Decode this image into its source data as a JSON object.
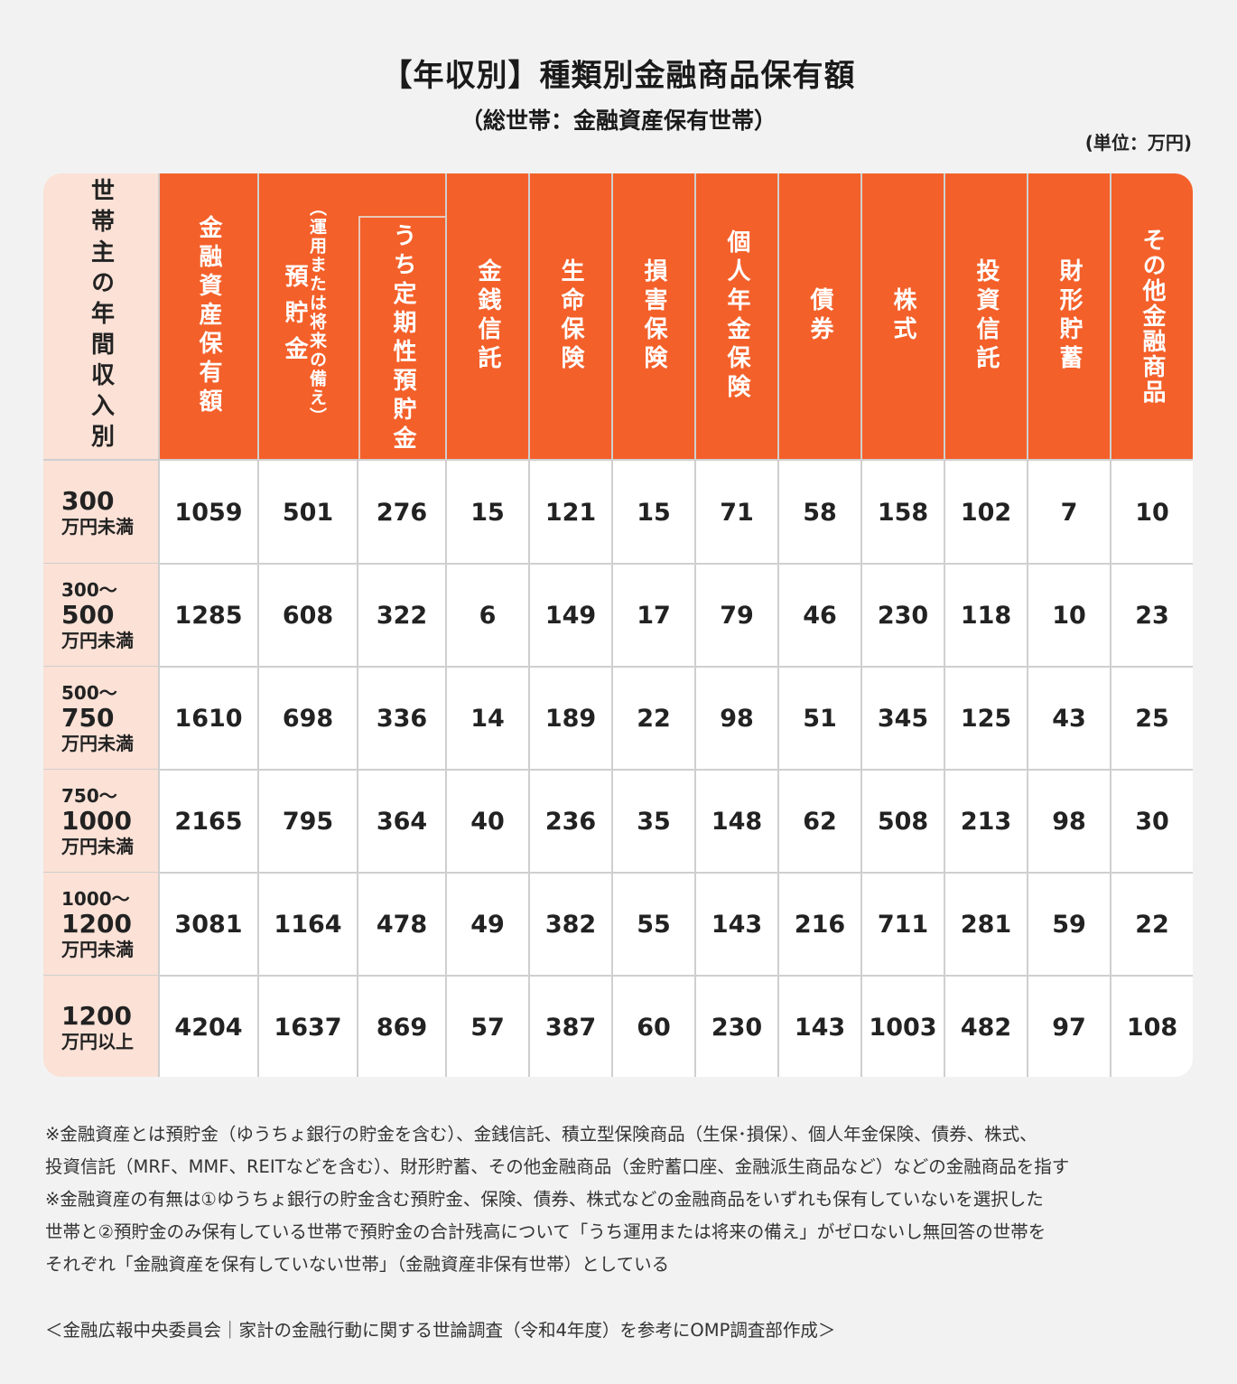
{
  "title": "【年収別】種類別金融商品保有額",
  "subtitle": "（総世帯：金融資産保有世帯）",
  "unit": "(単位：万円)",
  "colors": {
    "header_bg": "#f4602a",
    "row_label_bg": "#fbe1d6",
    "page_bg": "#f2f2f2",
    "grid": "#cfcfcf"
  },
  "table": {
    "row_header_label": "世帯主の年間収入別",
    "columns": [
      {
        "label": "金融資産保有額"
      },
      {
        "label": "預貯金",
        "note": "（運用または将来の備え）"
      },
      {
        "label": "うち定期性預貯金"
      },
      {
        "label": "金銭信託"
      },
      {
        "label": "生命保険"
      },
      {
        "label": "損害保険"
      },
      {
        "label": "個人年金保険"
      },
      {
        "label": "債券"
      },
      {
        "label": "株式"
      },
      {
        "label": "投資信託"
      },
      {
        "label": "財形貯蓄"
      },
      {
        "label": "その他金融商品"
      }
    ],
    "rows": [
      {
        "pre": "",
        "num": "300",
        "suf": "万円未満",
        "values": [
          "1059",
          "501",
          "276",
          "15",
          "121",
          "15",
          "71",
          "58",
          "158",
          "102",
          "7",
          "10"
        ]
      },
      {
        "pre": "300〜",
        "num": "500",
        "suf": "万円未満",
        "values": [
          "1285",
          "608",
          "322",
          "6",
          "149",
          "17",
          "79",
          "46",
          "230",
          "118",
          "10",
          "23"
        ]
      },
      {
        "pre": "500〜",
        "num": "750",
        "suf": "万円未満",
        "values": [
          "1610",
          "698",
          "336",
          "14",
          "189",
          "22",
          "98",
          "51",
          "345",
          "125",
          "43",
          "25"
        ]
      },
      {
        "pre": "750〜",
        "num": "1000",
        "suf": "万円未満",
        "values": [
          "2165",
          "795",
          "364",
          "40",
          "236",
          "35",
          "148",
          "62",
          "508",
          "213",
          "98",
          "30"
        ]
      },
      {
        "pre": "1000〜",
        "num": "1200",
        "suf": "万円未満",
        "values": [
          "3081",
          "1164",
          "478",
          "49",
          "382",
          "55",
          "143",
          "216",
          "711",
          "281",
          "59",
          "22"
        ]
      },
      {
        "pre": "",
        "num": "1200",
        "suf": "万円以上",
        "values": [
          "4204",
          "1637",
          "869",
          "57",
          "387",
          "60",
          "230",
          "143",
          "1003",
          "482",
          "97",
          "108"
        ]
      }
    ]
  },
  "notes": [
    "※金融資産とは預貯金（ゆうちょ銀行の貯金を含む）、金銭信託、積立型保険商品（生保･損保）、個人年金保険、債券、株式、",
    "投資信託（MRF、MMF、REITなどを含む）、財形貯蓄、その他金融商品（金貯蓄口座、金融派生商品など）などの金融商品を指す",
    "※金融資産の有無は①ゆうちょ銀行の貯金含む預貯金、保険、債券、株式などの金融商品をいずれも保有していないを選択した",
    "世帯と②預貯金のみ保有している世帯で預貯金の合計残高について「うち運用または将来の備え」がゼロないし無回答の世帯を",
    "それぞれ「金融資産を保有していない世帯」（金融資産非保有世帯）としている"
  ],
  "source": "＜金融広報中央委員会｜家計の金融行動に関する世論調査（令和4年度）を参考にOMP調査部作成＞"
}
